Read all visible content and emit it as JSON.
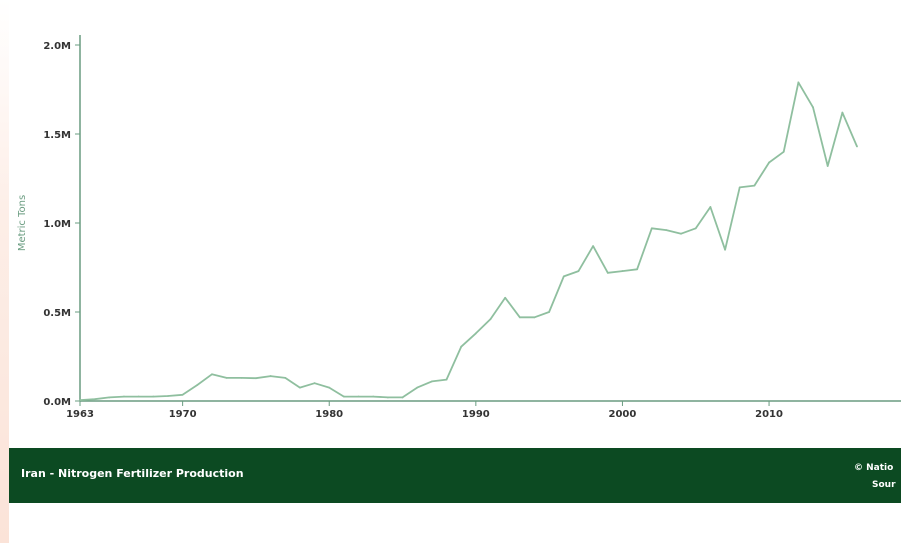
{
  "footer": {
    "title": "Iran - Nitrogen Fertilizer Production",
    "credit": "© Natio",
    "source": "Sour"
  },
  "colors": {
    "line": "#8fbf9f",
    "axis": "#6a9c80",
    "footer_bg": "#0c4a22",
    "footer_text": "#ffffff"
  },
  "chart_data": {
    "type": "line",
    "title": "Iran - Nitrogen Fertilizer Production",
    "ylabel": "Metric Tons",
    "xlabel": "",
    "xlim": [
      1963,
      2019
    ],
    "ylim": [
      0,
      2000000
    ],
    "grid": false,
    "x_ticks": [
      1963,
      1970,
      1980,
      1990,
      2000,
      2010
    ],
    "x_tick_labels": [
      "1963",
      "1970",
      "1980",
      "1990",
      "2000",
      "2010"
    ],
    "y_ticks": [
      0,
      500000,
      1000000,
      1500000,
      2000000
    ],
    "y_tick_labels": [
      "0.0M",
      "0.5M",
      "1.0M",
      "1.5M",
      "2.0M"
    ],
    "series": [
      {
        "x": [
          1963,
          1964,
          1965,
          1966,
          1967,
          1968,
          1969,
          1970,
          1971,
          1972,
          1973,
          1974,
          1975,
          1976,
          1977,
          1978,
          1979,
          1980,
          1981,
          1982,
          1983,
          1984,
          1985,
          1986,
          1987,
          1988,
          1989,
          1990,
          1991,
          1992,
          1993,
          1994,
          1995,
          1996,
          1997,
          1998,
          1999,
          2000,
          2001,
          2002,
          2003,
          2004,
          2005,
          2006,
          2007,
          2008,
          2009,
          2010,
          2011,
          2012,
          2013,
          2014,
          2015,
          2016
        ],
        "y": [
          5000,
          10000,
          20000,
          25000,
          25000,
          25000,
          28000,
          35000,
          90000,
          150000,
          130000,
          130000,
          128000,
          140000,
          130000,
          75000,
          100000,
          75000,
          25000,
          25000,
          25000,
          20000,
          20000,
          75000,
          110000,
          120000,
          305000,
          380000,
          460000,
          580000,
          470000,
          470000,
          500000,
          700000,
          730000,
          870000,
          720000,
          730000,
          740000,
          970000,
          960000,
          940000,
          970000,
          1090000,
          850000,
          1200000,
          1210000,
          1340000,
          1400000,
          1790000,
          1650000,
          1320000,
          1620000,
          1430000
        ]
      }
    ]
  }
}
